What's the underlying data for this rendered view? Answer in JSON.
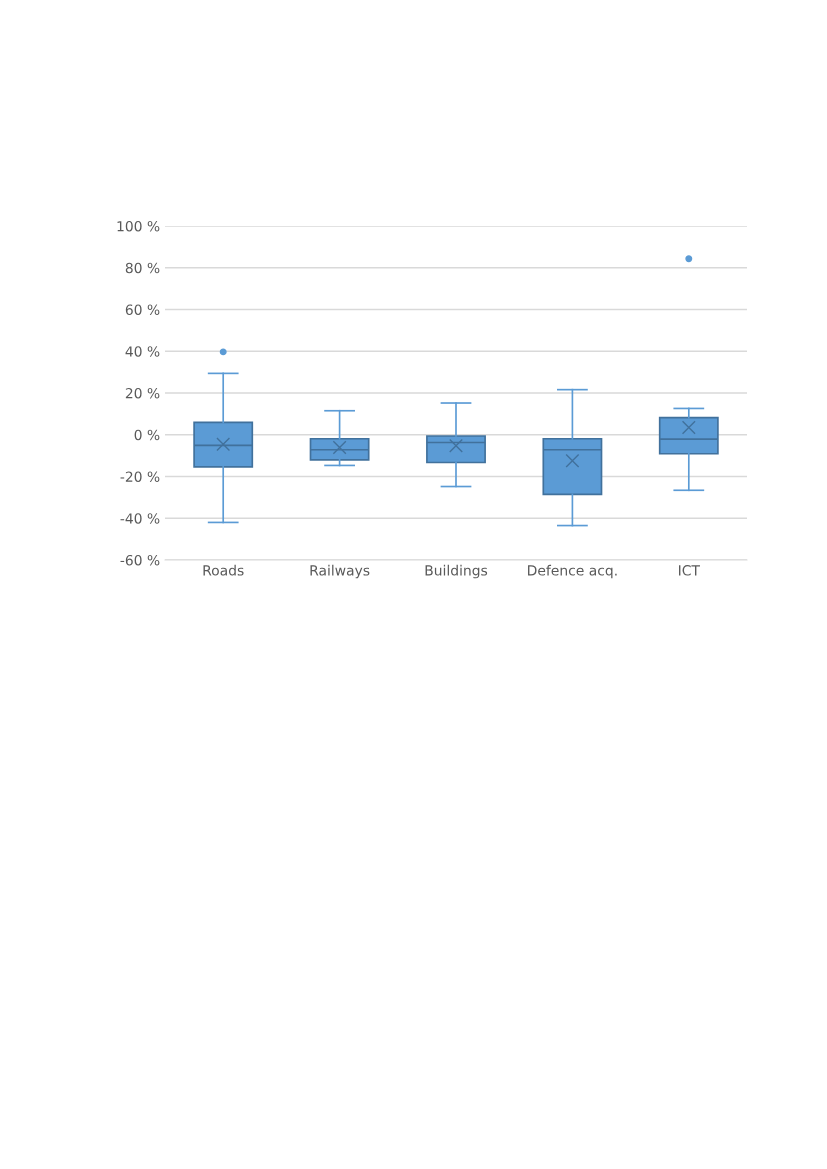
{
  "chart_data": {
    "type": "box",
    "categories": [
      "Roads",
      "Railways",
      "Buildings",
      "Defence acq.",
      "ICT"
    ],
    "boxes": [
      {
        "low": -42,
        "q1": -15.4,
        "median": -5.1,
        "q3": 5.9,
        "high": 29.4,
        "mean": -4.5,
        "outliers": [
          39.7
        ]
      },
      {
        "low": -14.7,
        "q1": -12,
        "median": -7.2,
        "q3": -1.9,
        "high": 11.5,
        "mean": -6.1
      },
      {
        "low": -24.8,
        "q1": -13.3,
        "median": -3.7,
        "q3": -0.6,
        "high": 15.2,
        "mean": -5.3
      },
      {
        "low": -43.5,
        "q1": -28.6,
        "median": -7.2,
        "q3": -1.9,
        "high": 21.6,
        "mean": -12.5
      },
      {
        "low": -26.6,
        "q1": -9.1,
        "median": -2.1,
        "q3": 8.2,
        "high": 12.6,
        "mean": 3.5,
        "outliers": [
          84.3
        ]
      }
    ],
    "color": "#5b9bd5",
    "ylim": [
      -60,
      100
    ],
    "yticks": [
      {
        "value": -60,
        "label": "-60 %"
      },
      {
        "value": -40,
        "label": "-40 %"
      },
      {
        "value": -20,
        "label": "-20 %"
      },
      {
        "value": 0,
        "label": "0 %"
      },
      {
        "value": 20,
        "label": "20 %"
      },
      {
        "value": 40,
        "label": "40 %"
      },
      {
        "value": 60,
        "label": "60 %"
      },
      {
        "value": 80,
        "label": "80 %"
      },
      {
        "value": 100,
        "label": "100 %"
      }
    ],
    "grid": "y",
    "legend": false,
    "marker": "circle"
  }
}
